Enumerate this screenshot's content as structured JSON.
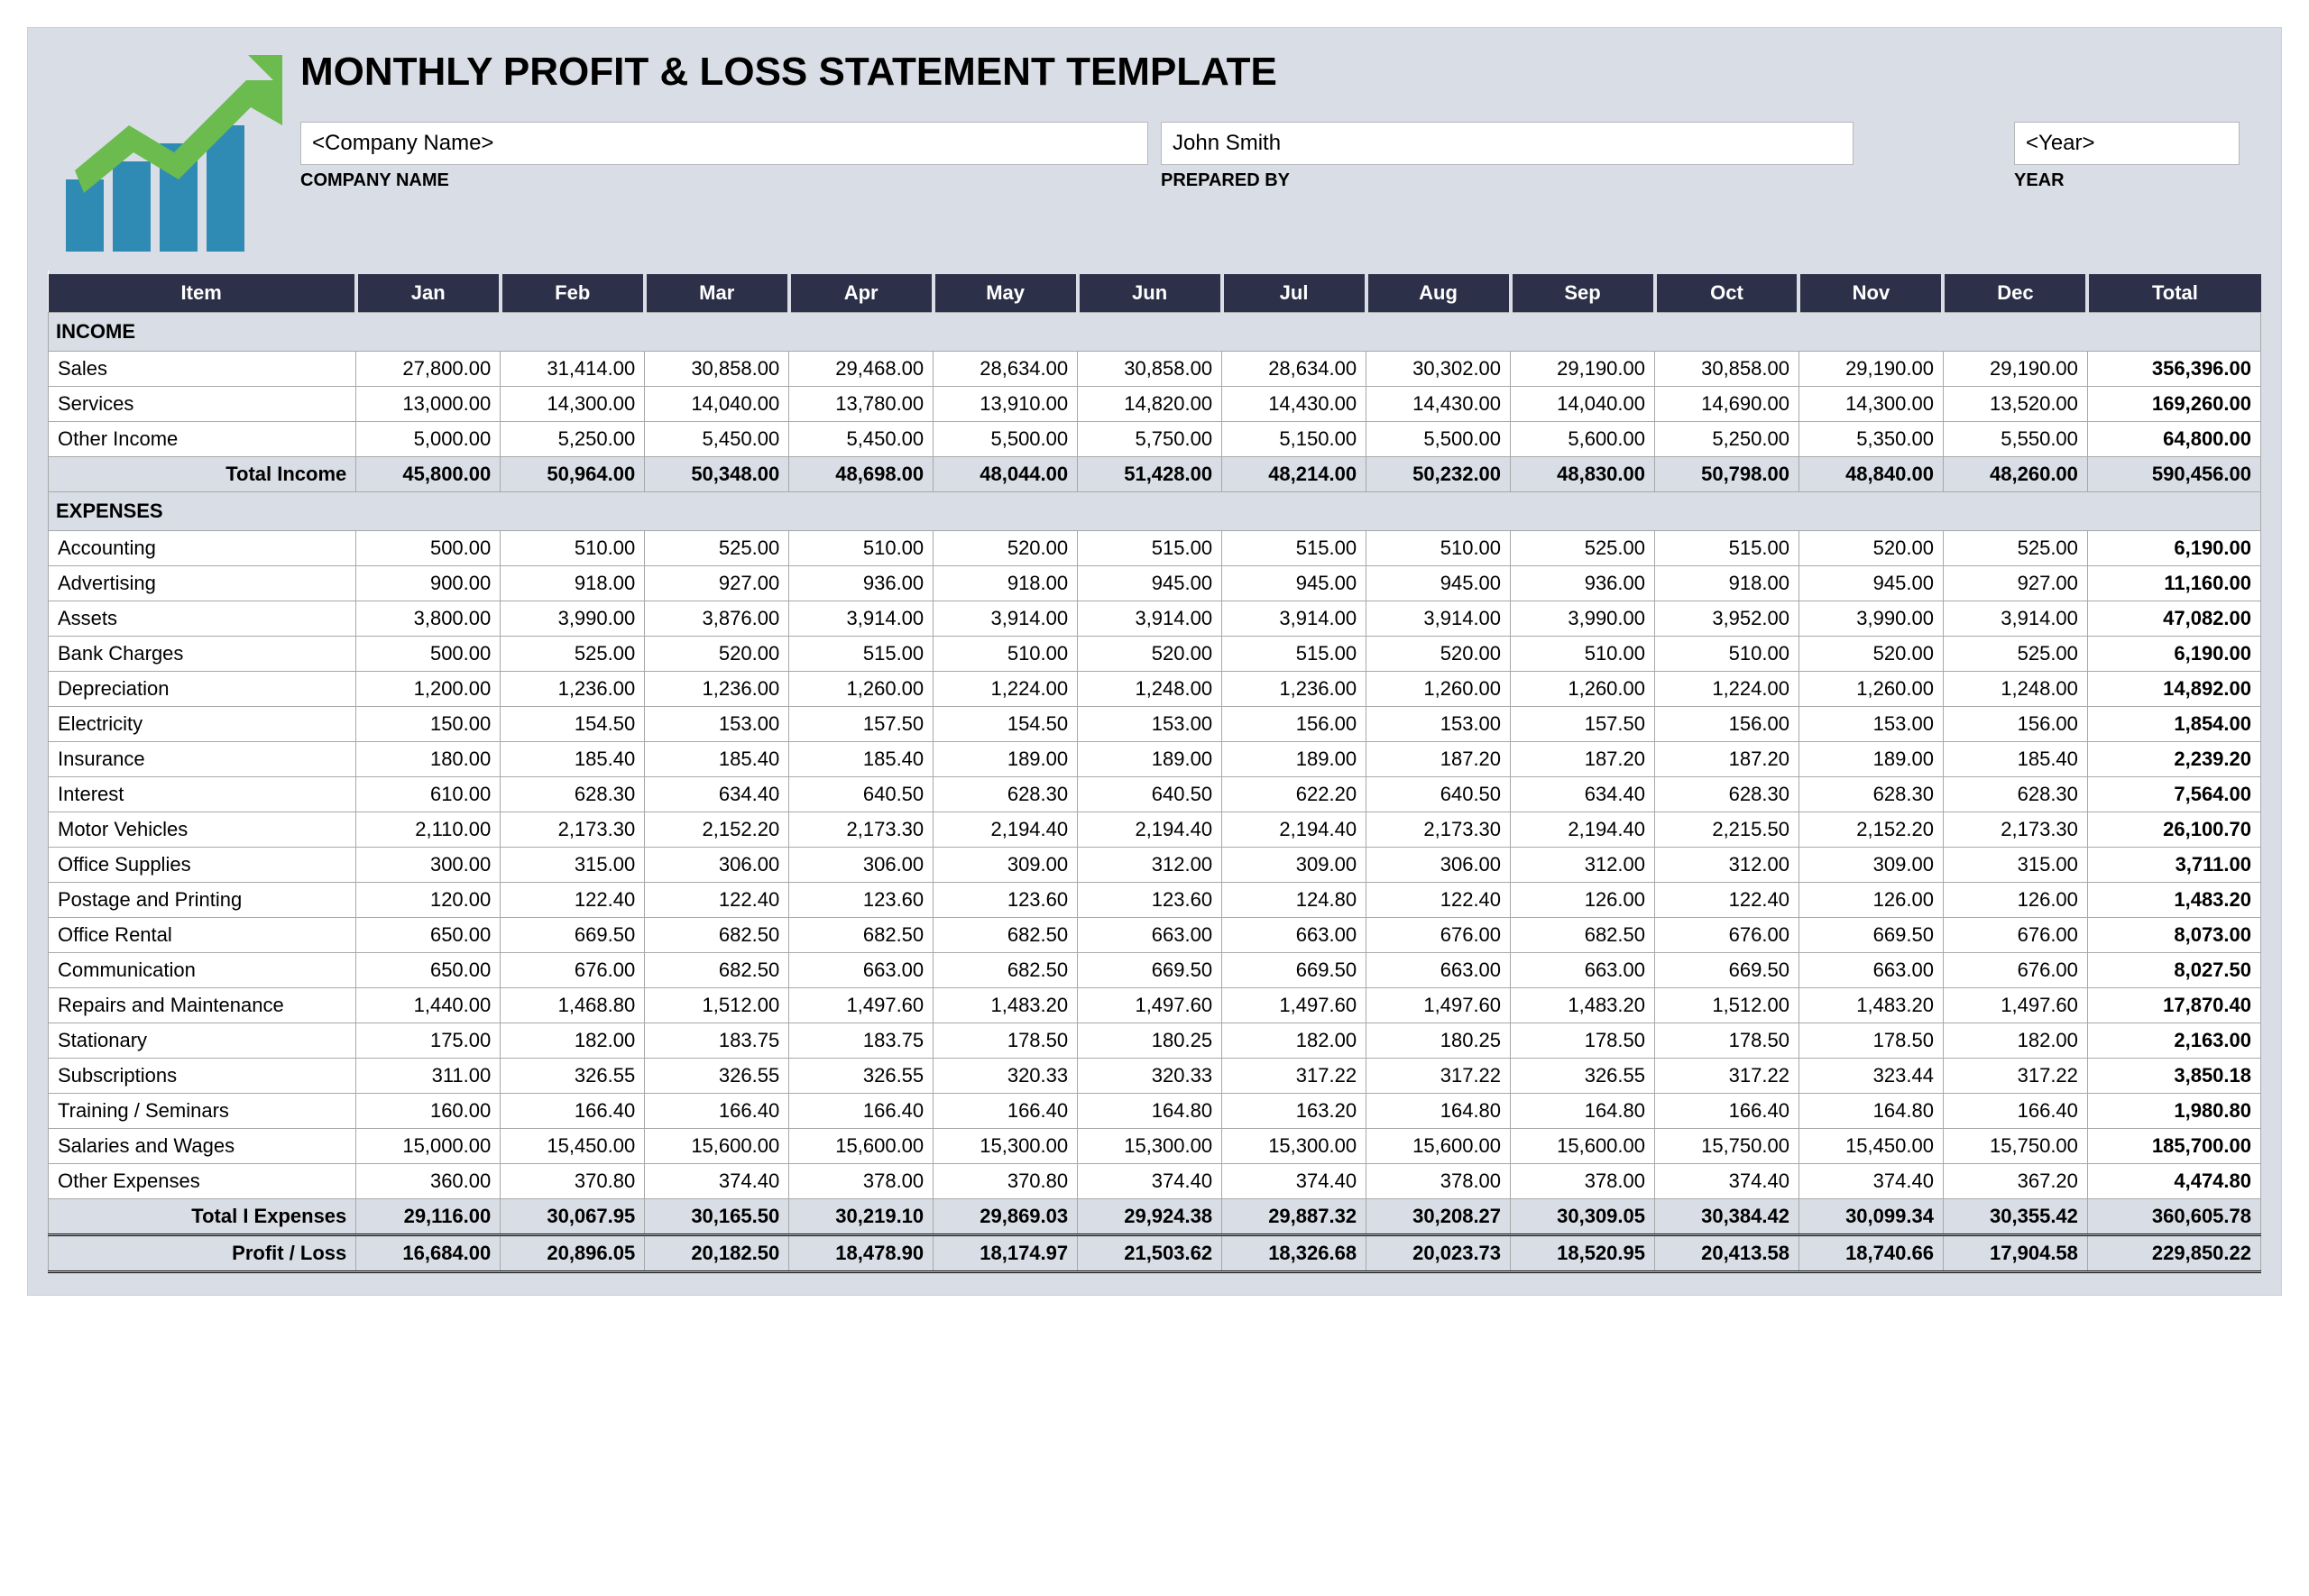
{
  "title": "MONTHLY PROFIT & LOSS STATEMENT TEMPLATE",
  "meta": {
    "company_value": "<Company Name>",
    "company_label": "COMPANY NAME",
    "prepared_value": "John Smith",
    "prepared_label": "PREPARED BY",
    "year_value": "<Year>",
    "year_label": "YEAR"
  },
  "colors": {
    "page_bg": "#d9dde5",
    "header_bg": "#2c3048",
    "header_text": "#ffffff",
    "cell_border": "#a8a8a8",
    "input_border": "#b8b8b8",
    "logo_bars": "#2f8bb3",
    "logo_arrow": "#6bbb4f"
  },
  "columns": [
    "Item",
    "Jan",
    "Feb",
    "Mar",
    "Apr",
    "May",
    "Jun",
    "Jul",
    "Aug",
    "Sep",
    "Oct",
    "Nov",
    "Dec",
    "Total"
  ],
  "sections": [
    {
      "title": "INCOME",
      "rows": [
        {
          "label": "Sales",
          "values": [
            "27,800.00",
            "31,414.00",
            "30,858.00",
            "29,468.00",
            "28,634.00",
            "30,858.00",
            "28,634.00",
            "30,302.00",
            "29,190.00",
            "30,858.00",
            "29,190.00",
            "29,190.00"
          ],
          "total": "356,396.00"
        },
        {
          "label": "Services",
          "values": [
            "13,000.00",
            "14,300.00",
            "14,040.00",
            "13,780.00",
            "13,910.00",
            "14,820.00",
            "14,430.00",
            "14,430.00",
            "14,040.00",
            "14,690.00",
            "14,300.00",
            "13,520.00"
          ],
          "total": "169,260.00"
        },
        {
          "label": "Other Income",
          "values": [
            "5,000.00",
            "5,250.00",
            "5,450.00",
            "5,450.00",
            "5,500.00",
            "5,750.00",
            "5,150.00",
            "5,500.00",
            "5,600.00",
            "5,250.00",
            "5,350.00",
            "5,550.00"
          ],
          "total": "64,800.00"
        }
      ],
      "subtotal": {
        "label": "Total Income",
        "values": [
          "45,800.00",
          "50,964.00",
          "50,348.00",
          "48,698.00",
          "48,044.00",
          "51,428.00",
          "48,214.00",
          "50,232.00",
          "48,830.00",
          "50,798.00",
          "48,840.00",
          "48,260.00"
        ],
        "total": "590,456.00"
      }
    },
    {
      "title": "EXPENSES",
      "rows": [
        {
          "label": "Accounting",
          "values": [
            "500.00",
            "510.00",
            "525.00",
            "510.00",
            "520.00",
            "515.00",
            "515.00",
            "510.00",
            "525.00",
            "515.00",
            "520.00",
            "525.00"
          ],
          "total": "6,190.00"
        },
        {
          "label": "Advertising",
          "values": [
            "900.00",
            "918.00",
            "927.00",
            "936.00",
            "918.00",
            "945.00",
            "945.00",
            "945.00",
            "936.00",
            "918.00",
            "945.00",
            "927.00"
          ],
          "total": "11,160.00"
        },
        {
          "label": "Assets",
          "values": [
            "3,800.00",
            "3,990.00",
            "3,876.00",
            "3,914.00",
            "3,914.00",
            "3,914.00",
            "3,914.00",
            "3,914.00",
            "3,990.00",
            "3,952.00",
            "3,990.00",
            "3,914.00"
          ],
          "total": "47,082.00"
        },
        {
          "label": "Bank Charges",
          "values": [
            "500.00",
            "525.00",
            "520.00",
            "515.00",
            "510.00",
            "520.00",
            "515.00",
            "520.00",
            "510.00",
            "510.00",
            "520.00",
            "525.00"
          ],
          "total": "6,190.00"
        },
        {
          "label": "Depreciation",
          "values": [
            "1,200.00",
            "1,236.00",
            "1,236.00",
            "1,260.00",
            "1,224.00",
            "1,248.00",
            "1,236.00",
            "1,260.00",
            "1,260.00",
            "1,224.00",
            "1,260.00",
            "1,248.00"
          ],
          "total": "14,892.00"
        },
        {
          "label": "Electricity",
          "values": [
            "150.00",
            "154.50",
            "153.00",
            "157.50",
            "154.50",
            "153.00",
            "156.00",
            "153.00",
            "157.50",
            "156.00",
            "153.00",
            "156.00"
          ],
          "total": "1,854.00"
        },
        {
          "label": "Insurance",
          "values": [
            "180.00",
            "185.40",
            "185.40",
            "185.40",
            "189.00",
            "189.00",
            "189.00",
            "187.20",
            "187.20",
            "187.20",
            "189.00",
            "185.40"
          ],
          "total": "2,239.20"
        },
        {
          "label": "Interest",
          "values": [
            "610.00",
            "628.30",
            "634.40",
            "640.50",
            "628.30",
            "640.50",
            "622.20",
            "640.50",
            "634.40",
            "628.30",
            "628.30",
            "628.30"
          ],
          "total": "7,564.00"
        },
        {
          "label": "Motor Vehicles",
          "values": [
            "2,110.00",
            "2,173.30",
            "2,152.20",
            "2,173.30",
            "2,194.40",
            "2,194.40",
            "2,194.40",
            "2,173.30",
            "2,194.40",
            "2,215.50",
            "2,152.20",
            "2,173.30"
          ],
          "total": "26,100.70"
        },
        {
          "label": "Office Supplies",
          "values": [
            "300.00",
            "315.00",
            "306.00",
            "306.00",
            "309.00",
            "312.00",
            "309.00",
            "306.00",
            "312.00",
            "312.00",
            "309.00",
            "315.00"
          ],
          "total": "3,711.00"
        },
        {
          "label": "Postage and Printing",
          "values": [
            "120.00",
            "122.40",
            "122.40",
            "123.60",
            "123.60",
            "123.60",
            "124.80",
            "122.40",
            "126.00",
            "122.40",
            "126.00",
            "126.00"
          ],
          "total": "1,483.20"
        },
        {
          "label": "Office Rental",
          "values": [
            "650.00",
            "669.50",
            "682.50",
            "682.50",
            "682.50",
            "663.00",
            "663.00",
            "676.00",
            "682.50",
            "676.00",
            "669.50",
            "676.00"
          ],
          "total": "8,073.00"
        },
        {
          "label": "Communication",
          "values": [
            "650.00",
            "676.00",
            "682.50",
            "663.00",
            "682.50",
            "669.50",
            "669.50",
            "663.00",
            "663.00",
            "669.50",
            "663.00",
            "676.00"
          ],
          "total": "8,027.50"
        },
        {
          "label": "Repairs and Maintenance",
          "values": [
            "1,440.00",
            "1,468.80",
            "1,512.00",
            "1,497.60",
            "1,483.20",
            "1,497.60",
            "1,497.60",
            "1,497.60",
            "1,483.20",
            "1,512.00",
            "1,483.20",
            "1,497.60"
          ],
          "total": "17,870.40"
        },
        {
          "label": "Stationary",
          "values": [
            "175.00",
            "182.00",
            "183.75",
            "183.75",
            "178.50",
            "180.25",
            "182.00",
            "180.25",
            "178.50",
            "178.50",
            "178.50",
            "182.00"
          ],
          "total": "2,163.00"
        },
        {
          "label": "Subscriptions",
          "values": [
            "311.00",
            "326.55",
            "326.55",
            "326.55",
            "320.33",
            "320.33",
            "317.22",
            "317.22",
            "326.55",
            "317.22",
            "323.44",
            "317.22"
          ],
          "total": "3,850.18"
        },
        {
          "label": "Training / Seminars",
          "values": [
            "160.00",
            "166.40",
            "166.40",
            "166.40",
            "166.40",
            "164.80",
            "163.20",
            "164.80",
            "164.80",
            "166.40",
            "164.80",
            "166.40"
          ],
          "total": "1,980.80"
        },
        {
          "label": "Salaries and Wages",
          "values": [
            "15,000.00",
            "15,450.00",
            "15,600.00",
            "15,600.00",
            "15,300.00",
            "15,300.00",
            "15,300.00",
            "15,600.00",
            "15,600.00",
            "15,750.00",
            "15,450.00",
            "15,750.00"
          ],
          "total": "185,700.00"
        },
        {
          "label": "Other Expenses",
          "values": [
            "360.00",
            "370.80",
            "374.40",
            "378.00",
            "370.80",
            "374.40",
            "374.40",
            "378.00",
            "378.00",
            "374.40",
            "374.40",
            "367.20"
          ],
          "total": "4,474.80"
        }
      ],
      "subtotal": {
        "label": "Total I Expenses",
        "values": [
          "29,116.00",
          "30,067.95",
          "30,165.50",
          "30,219.10",
          "29,869.03",
          "29,924.38",
          "29,887.32",
          "30,208.27",
          "30,309.05",
          "30,384.42",
          "30,099.34",
          "30,355.42"
        ],
        "total": "360,605.78"
      }
    }
  ],
  "grand": {
    "label": "Profit / Loss",
    "values": [
      "16,684.00",
      "20,896.05",
      "20,182.50",
      "18,478.90",
      "18,174.97",
      "21,503.62",
      "18,326.68",
      "20,023.73",
      "18,520.95",
      "20,413.58",
      "18,740.66",
      "17,904.58"
    ],
    "total": "229,850.22"
  }
}
